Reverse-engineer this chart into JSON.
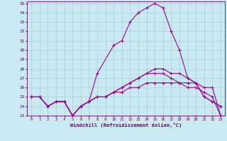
{
  "title": "",
  "xlabel": "Windchill (Refroidissement éolien,°C)",
  "background_color": "#c8eaf0",
  "grid_color": "#aaccdd",
  "line_color": "#990099",
  "spine_color": "#660066",
  "tick_color": "#660066",
  "xlabel_color": "#660066",
  "xlim": [
    -0.5,
    23.5
  ],
  "ylim": [
    23,
    35.2
  ],
  "xticks": [
    0,
    1,
    2,
    3,
    4,
    5,
    6,
    7,
    8,
    9,
    10,
    11,
    12,
    13,
    14,
    15,
    16,
    17,
    18,
    19,
    20,
    21,
    22,
    23
  ],
  "yticks": [
    23,
    24,
    25,
    26,
    27,
    28,
    29,
    30,
    31,
    32,
    33,
    34,
    35
  ],
  "series": [
    {
      "x": [
        0,
        1,
        2,
        3,
        4,
        5,
        6,
        7,
        8,
        9,
        10,
        11,
        12,
        13,
        14,
        15,
        16,
        17,
        18,
        19,
        20,
        21,
        22,
        23
      ],
      "y": [
        25,
        25,
        24,
        24.5,
        24.5,
        23,
        24,
        24.5,
        27.5,
        null,
        30.5,
        31,
        33,
        34,
        34.5,
        35,
        34.5,
        32,
        30,
        27,
        26.5,
        25,
        24.5,
        24
      ]
    },
    {
      "x": [
        0,
        1,
        2,
        3,
        4,
        5,
        6,
        7,
        8,
        9,
        10,
        11,
        12,
        13,
        14,
        15,
        16,
        17,
        18,
        19,
        20,
        21,
        22,
        23
      ],
      "y": [
        25,
        25,
        24,
        24.5,
        24.5,
        23,
        24,
        24.5,
        25,
        25,
        25.5,
        26,
        26.5,
        27,
        27.5,
        28,
        28,
        27.5,
        27.5,
        27,
        26.5,
        25,
        24.5,
        24
      ]
    },
    {
      "x": [
        0,
        1,
        2,
        3,
        4,
        5,
        6,
        7,
        8,
        9,
        10,
        11,
        12,
        13,
        14,
        15,
        16,
        17,
        18,
        19,
        20,
        21,
        22,
        23
      ],
      "y": [
        25,
        25,
        24,
        24.5,
        24.5,
        23,
        24,
        24.5,
        25,
        25,
        25.5,
        26,
        26.5,
        27,
        27.5,
        27.5,
        27.5,
        27,
        26.5,
        26,
        26,
        25.5,
        25,
        23
      ]
    },
    {
      "x": [
        0,
        1,
        2,
        3,
        4,
        5,
        6,
        7,
        8,
        9,
        10,
        11,
        12,
        13,
        14,
        15,
        16,
        17,
        18,
        19,
        20,
        21,
        22,
        23
      ],
      "y": [
        25,
        25,
        24,
        24.5,
        24.5,
        23,
        24,
        24.5,
        25,
        25,
        25.5,
        25.5,
        26,
        26,
        26.5,
        26.5,
        26.5,
        26.5,
        26.5,
        26.5,
        26.5,
        26,
        26,
        23
      ]
    }
  ]
}
